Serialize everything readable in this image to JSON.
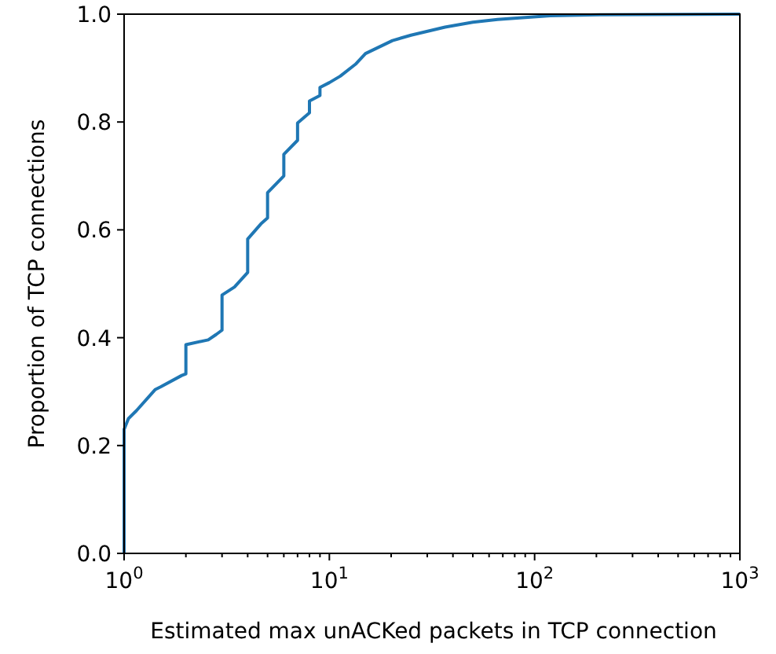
{
  "chart_data": {
    "type": "line",
    "xlabel": "Estimated max unACKed packets in TCP connection",
    "ylabel": "Proportion of TCP connections",
    "log": "x",
    "grid": false,
    "marker": "none",
    "line_style": "solid",
    "x": [
      1,
      1,
      1.05,
      1.15,
      1.42,
      1.51,
      1.91,
      2,
      2,
      2.57,
      2.81,
      3,
      3,
      3.45,
      4,
      4,
      4.64,
      5,
      5,
      6,
      6,
      7,
      7,
      8,
      8,
      9,
      9,
      10,
      11.3,
      13.4,
      15,
      20.3,
      25,
      36.6,
      50,
      66,
      119,
      214,
      1000
    ],
    "series": [
      {
        "color": "#1f77b4",
        "values": [
          0,
          0.23,
          0.25,
          0.265,
          0.304,
          0.309,
          0.33,
          0.333,
          0.387,
          0.396,
          0.406,
          0.414,
          0.479,
          0.494,
          0.521,
          0.583,
          0.611,
          0.622,
          0.669,
          0.7,
          0.74,
          0.766,
          0.798,
          0.817,
          0.839,
          0.849,
          0.864,
          0.873,
          0.885,
          0.907,
          0.927,
          0.951,
          0.961,
          0.976,
          0.985,
          0.99,
          0.997,
          0.999,
          1
        ]
      }
    ],
    "xlim": [
      1,
      1000
    ],
    "ylim": [
      0,
      1
    ],
    "xticks": [
      {
        "value": 1,
        "label": "10$^{0}$"
      },
      {
        "value": 2,
        "label": null
      },
      {
        "value": 3,
        "label": null
      },
      {
        "value": 4,
        "label": null
      },
      {
        "value": 5,
        "label": null
      },
      {
        "value": 6,
        "label": null
      },
      {
        "value": 7,
        "label": null
      },
      {
        "value": 8,
        "label": null
      },
      {
        "value": 9,
        "label": null
      },
      {
        "value": 10,
        "label": "10$^{1}$"
      },
      {
        "value": 20,
        "label": null
      },
      {
        "value": 30,
        "label": null
      },
      {
        "value": 40,
        "label": null
      },
      {
        "value": 50,
        "label": null
      },
      {
        "value": 60,
        "label": null
      },
      {
        "value": 70,
        "label": null
      },
      {
        "value": 80,
        "label": null
      },
      {
        "value": 90,
        "label": null
      },
      {
        "value": 100,
        "label": "10$^{2}$"
      },
      {
        "value": 200,
        "label": null
      },
      {
        "value": 300,
        "label": null
      },
      {
        "value": 400,
        "label": null
      },
      {
        "value": 500,
        "label": null
      },
      {
        "value": 600,
        "label": null
      },
      {
        "value": 700,
        "label": null
      },
      {
        "value": 800,
        "label": null
      },
      {
        "value": 900,
        "label": null
      },
      {
        "value": 1000,
        "label": "10$^{3}$"
      }
    ],
    "yticks": [
      {
        "value": 0,
        "label": "0.0"
      },
      {
        "value": 0.2,
        "label": "0.2"
      },
      {
        "value": 0.4,
        "label": "0.4"
      },
      {
        "value": 0.6,
        "label": "0.6"
      },
      {
        "value": 0.8,
        "label": "0.8"
      },
      {
        "value": 1,
        "label": "1.0"
      }
    ]
  }
}
